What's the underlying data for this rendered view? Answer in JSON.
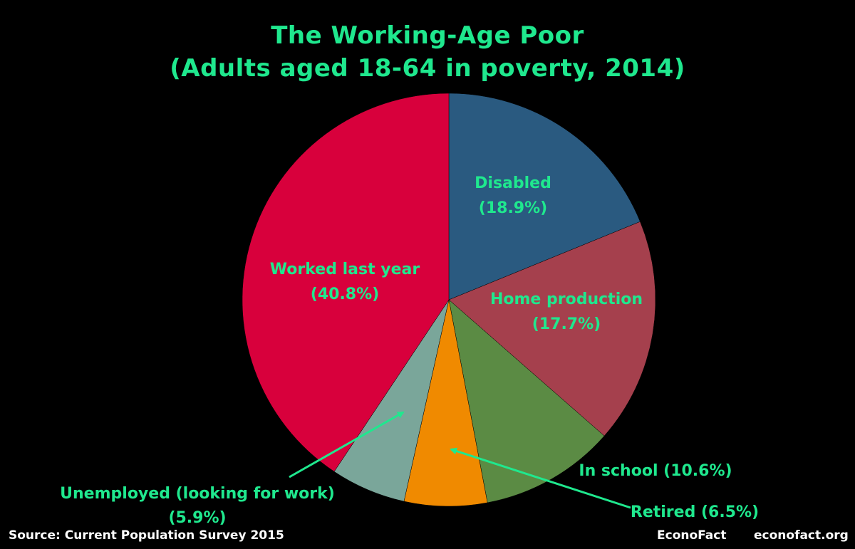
{
  "chart_data": {
    "type": "pie",
    "title": "The Working-Age Poor",
    "subtitle": "(Adults aged 18-64 in poverty, 2014)",
    "slices": [
      {
        "label": "Disabled",
        "value_label": "(18.9%)",
        "value": 18.9,
        "color": "#2A5A80"
      },
      {
        "label": "Home production",
        "value_label": "(17.7%)",
        "value": 17.7,
        "color": "#A5404D"
      },
      {
        "label": "In school (10.6%)",
        "value_label": "",
        "value": 10.6,
        "color": "#5B8B44"
      },
      {
        "label": "Retired (6.5%)",
        "value_label": "",
        "value": 6.5,
        "color": "#F08A00"
      },
      {
        "label": "Unemployed (looking for work)",
        "value_label": "(5.9%)",
        "value": 5.9,
        "color": "#7AA69A"
      },
      {
        "label": "Worked last year",
        "value_label": "(40.8%)",
        "value": 40.8,
        "color": "#D8003C"
      }
    ],
    "label_color": "#1FE88E"
  },
  "footer": {
    "source": "Source: Current Population Survey 2015",
    "brand": "EconoFact",
    "site": "econofact.org"
  }
}
